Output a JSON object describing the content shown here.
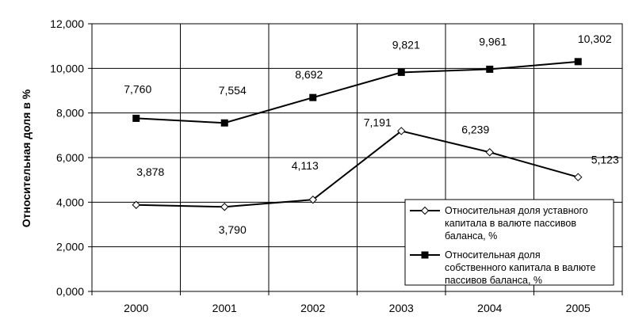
{
  "chart_data": {
    "type": "line",
    "ylabel": "Относительная доля в %",
    "xlabel": "",
    "categories": [
      "2000",
      "2001",
      "2002",
      "2003",
      "2004",
      "2005"
    ],
    "ylim": [
      0,
      12
    ],
    "yticks": [
      0,
      2,
      4,
      6,
      8,
      10,
      12
    ],
    "ytick_labels": [
      "0,000",
      "2,000",
      "4,000",
      "6,000",
      "8,000",
      "10,000",
      "12,000"
    ],
    "grid": true,
    "legend_position": "bottom-right",
    "series": [
      {
        "name": "Относительная доля уставного капитала в валюте пассивов баланса, %",
        "legend_lines": [
          "Относительная доля уставного",
          "капитала в валюте пассивов",
          "баланса, %"
        ],
        "marker": "diamond-open",
        "color": "#000000",
        "values": [
          3.878,
          3.79,
          4.113,
          7.191,
          6.239,
          5.123
        ],
        "labels": [
          "3,878",
          "3,790",
          "4,113",
          "7,191",
          "6,239",
          "5,123"
        ]
      },
      {
        "name": "Относительная доля собственного капитала в валюте пассивов баланса, %",
        "legend_lines": [
          "Относительная доля",
          "собственного капитала в валюте",
          "пассивов баланса, %"
        ],
        "marker": "square-filled",
        "color": "#000000",
        "values": [
          7.76,
          7.554,
          8.692,
          9.821,
          9.961,
          10.302
        ],
        "labels": [
          "7,760",
          "7,554",
          "8,692",
          "9,821",
          "9,961",
          "10,302"
        ]
      }
    ]
  }
}
